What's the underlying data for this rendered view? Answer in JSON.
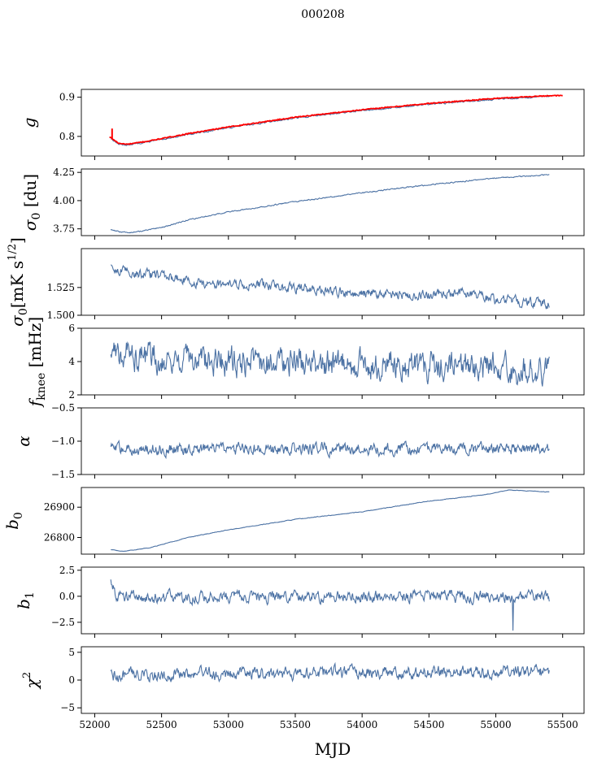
{
  "figure": {
    "title": "000208",
    "xlabel": "MJD"
  },
  "chart_data": {
    "type": "line",
    "x_range": [
      51900,
      55660
    ],
    "x_data_range": [
      52120,
      55400
    ],
    "x_ticks": [
      52000,
      52500,
      53000,
      53500,
      54000,
      54500,
      55000,
      55500
    ],
    "x_tick_labels": [
      "52000",
      "52500",
      "53000",
      "53500",
      "54000",
      "54500",
      "55000",
      "55500"
    ],
    "colors": {
      "series": "#4c72a4",
      "highlight": "#ff0000"
    },
    "panels": [
      {
        "id": "g",
        "ylabel_main": "g",
        "ylim": [
          0.75,
          0.92
        ],
        "y_ticks": [
          0.8,
          0.9
        ],
        "y_tick_labels": [
          "0.8",
          "0.9"
        ],
        "trend": [
          [
            52120,
            0.795
          ],
          [
            52180,
            0.78
          ],
          [
            52250,
            0.778
          ],
          [
            52400,
            0.786
          ],
          [
            52700,
            0.805
          ],
          [
            53000,
            0.822
          ],
          [
            53500,
            0.847
          ],
          [
            54000,
            0.866
          ],
          [
            54500,
            0.882
          ],
          [
            55000,
            0.895
          ],
          [
            55400,
            0.902
          ]
        ],
        "noise": 0.0015,
        "red_overlay": {
          "x_range": [
            52110,
            55500
          ],
          "offset": 0.002,
          "spike": [
            52130,
            0.82
          ]
        }
      },
      {
        "id": "sigma0-du",
        "ylabel_main": "σ",
        "ylabel_sub": "0",
        "ylabel_rest": " [du]",
        "ylim": [
          3.69,
          4.28
        ],
        "y_ticks": [
          3.75,
          4.0,
          4.25
        ],
        "y_tick_labels": [
          "3.75",
          "4.00",
          "4.25"
        ],
        "trend": [
          [
            52120,
            3.745
          ],
          [
            52200,
            3.72
          ],
          [
            52300,
            3.72
          ],
          [
            52500,
            3.76
          ],
          [
            52700,
            3.83
          ],
          [
            53000,
            3.9
          ],
          [
            53500,
            3.99
          ],
          [
            54000,
            4.07
          ],
          [
            54500,
            4.14
          ],
          [
            55000,
            4.2
          ],
          [
            55400,
            4.23
          ]
        ],
        "noise": 0.004
      },
      {
        "id": "sigma0-mks",
        "ylabel_main": "σ",
        "ylabel_sub": "0",
        "ylabel_rest": "[mK s",
        "ylabel_sup": "1/2",
        "ylabel_end": "]",
        "ylim": [
          1.5,
          1.56
        ],
        "y_ticks": [
          1.5,
          1.525
        ],
        "y_tick_labels": [
          "1.500",
          "1.525"
        ],
        "trend": [
          [
            52120,
            1.542
          ],
          [
            52300,
            1.538
          ],
          [
            52600,
            1.534
          ],
          [
            52800,
            1.528
          ],
          [
            53300,
            1.527
          ],
          [
            53700,
            1.522
          ],
          [
            54100,
            1.519
          ],
          [
            54500,
            1.518
          ],
          [
            54800,
            1.52
          ],
          [
            55000,
            1.514
          ],
          [
            55200,
            1.512
          ],
          [
            55400,
            1.51
          ]
        ],
        "noise": 0.0035
      },
      {
        "id": "fknee",
        "ylabel_main": "f",
        "ylabel_sub": "knee",
        "ylabel_rest": " [mHz]",
        "ylim": [
          2,
          6
        ],
        "y_ticks": [
          2,
          4,
          6
        ],
        "y_tick_labels": [
          "2",
          "4",
          "6"
        ],
        "trend": [
          [
            52120,
            4.6
          ],
          [
            52500,
            4.2
          ],
          [
            53000,
            4.0
          ],
          [
            53500,
            3.9
          ],
          [
            54000,
            3.8
          ],
          [
            54500,
            3.7
          ],
          [
            55000,
            3.6
          ],
          [
            55400,
            3.4
          ]
        ],
        "noise": 0.7
      },
      {
        "id": "alpha",
        "ylabel_main": "α",
        "ylim": [
          -1.5,
          -0.5
        ],
        "y_ticks": [
          -1.5,
          -1.0,
          -0.5
        ],
        "y_tick_labels": [
          "−1.5",
          "−1.0",
          "−0.5"
        ],
        "trend": [
          [
            52120,
            -1.12
          ],
          [
            55400,
            -1.11
          ]
        ],
        "noise": 0.07
      },
      {
        "id": "b0",
        "ylabel_main": "b",
        "ylabel_sub": "0",
        "ylim": [
          26745,
          26965
        ],
        "y_ticks": [
          26800,
          26900
        ],
        "y_tick_labels": [
          "26800",
          "26900"
        ],
        "trend": [
          [
            52120,
            26760
          ],
          [
            52200,
            26754
          ],
          [
            52400,
            26765
          ],
          [
            52700,
            26800
          ],
          [
            53000,
            26825
          ],
          [
            53500,
            26860
          ],
          [
            54000,
            26885
          ],
          [
            54500,
            26920
          ],
          [
            54900,
            26940
          ],
          [
            55100,
            26957
          ],
          [
            55400,
            26950
          ]
        ],
        "noise": 0.8
      },
      {
        "id": "b1",
        "ylabel_main": "b",
        "ylabel_sub": "1",
        "ylim": [
          -3.6,
          2.8
        ],
        "y_ticks": [
          -2.5,
          0.0,
          2.5
        ],
        "y_tick_labels": [
          "−2.5",
          "0.0",
          "2.5"
        ],
        "trend": [
          [
            52120,
            1.6
          ],
          [
            52160,
            0.2
          ],
          [
            52300,
            -0.1
          ],
          [
            55400,
            0.0
          ]
        ],
        "noise": 0.45,
        "spike": [
          55130,
          -3.3
        ]
      },
      {
        "id": "chi2",
        "ylabel_main": "χ",
        "ylabel_sup": "2",
        "ylim": [
          -6,
          6
        ],
        "y_ticks": [
          -5,
          0,
          5
        ],
        "y_tick_labels": [
          "−5",
          "0",
          "5"
        ],
        "trend": [
          [
            52120,
            0.9
          ],
          [
            55400,
            1.6
          ]
        ],
        "noise": 0.9
      }
    ]
  }
}
